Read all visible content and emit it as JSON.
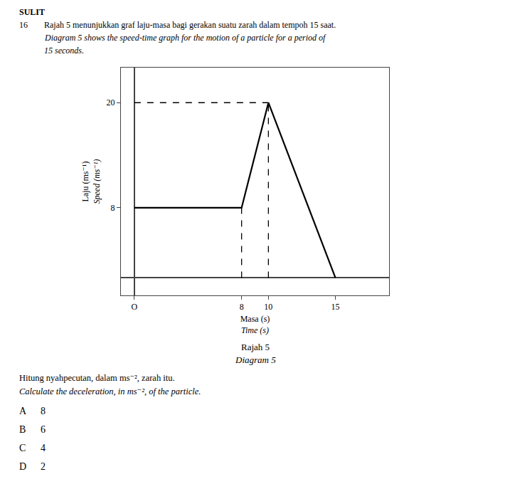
{
  "chart_data": {
    "type": "line",
    "title": "Rajah 5",
    "subtitle": "Diagram 5",
    "xlabel": "Masa (s)",
    "xlabel_english": "Time (s)",
    "ylabel": "Laju (ms⁻¹)",
    "ylabel_english": "Speed (ms⁻¹)",
    "series": [
      {
        "x": [
          0,
          8,
          10,
          15
        ],
        "values": [
          8,
          8,
          20,
          0
        ],
        "color": "#000000",
        "line_style": "solid"
      },
      {
        "x": [
          0,
          10
        ],
        "values": [
          20,
          20
        ],
        "color": "#000000",
        "line_style": "dashed"
      },
      {
        "x": [
          8,
          8
        ],
        "values": [
          0,
          8
        ],
        "color": "#000000",
        "line_style": "dashed"
      },
      {
        "x": [
          10,
          10
        ],
        "values": [
          0,
          20
        ],
        "color": "#000000",
        "line_style": "dashed"
      }
    ],
    "xlim": [
      -1,
      19
    ],
    "ylim": [
      -2,
      24
    ],
    "xticks": [
      {
        "value": 0,
        "label": "O"
      },
      8,
      10,
      15
    ],
    "yticks": [
      8,
      20
    ],
    "grid": false,
    "header": {
      "bold": "SULIT",
      "number": "16",
      "lines": [
        "Rajah 5 menunjukkan graf laju-masa bagi gerakan suatu zarah dalam tempoh 15 saat.",
        "Diagram 5 shows the speed-time graph for the motion of a particle for a period of",
        "15 seconds."
      ]
    },
    "question": [
      "Hitung nyahpecutan, dalam ms⁻², zarah itu.",
      "Calculate the deceleration, in ms⁻², of the particle."
    ],
    "options": [
      {
        "label": "A",
        "text": "8"
      },
      {
        "label": "B",
        "text": "6"
      },
      {
        "label": "C",
        "text": "4"
      },
      {
        "label": "D",
        "text": "2"
      }
    ]
  }
}
